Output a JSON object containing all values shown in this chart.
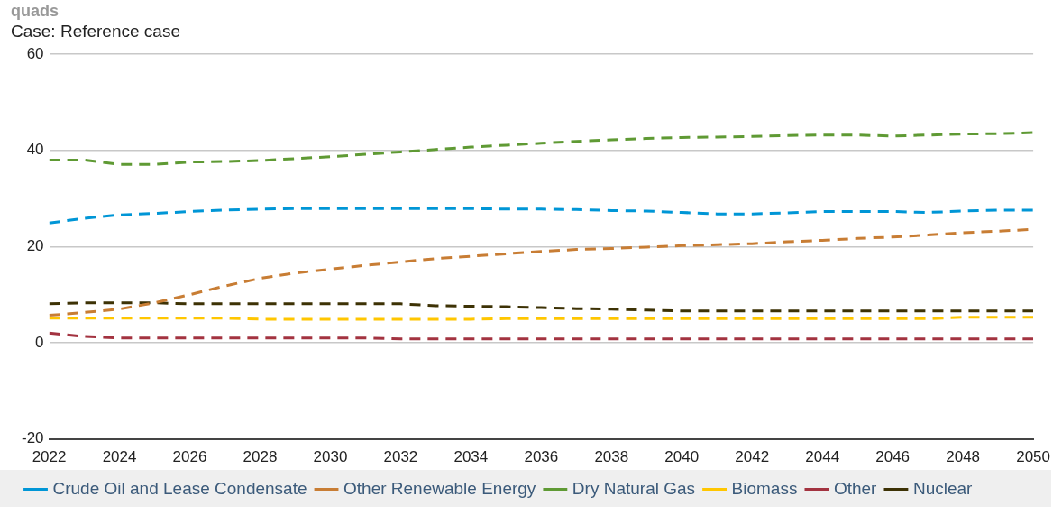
{
  "chart_data": {
    "type": "line",
    "title": "Case: Reference case",
    "ylabel": "quads",
    "x": [
      2022,
      2023,
      2024,
      2025,
      2026,
      2027,
      2028,
      2029,
      2030,
      2031,
      2032,
      2033,
      2034,
      2035,
      2036,
      2037,
      2038,
      2039,
      2040,
      2041,
      2042,
      2043,
      2044,
      2045,
      2046,
      2047,
      2048,
      2049,
      2050
    ],
    "series": [
      {
        "name": "Crude Oil and Lease Condensate",
        "color": "#0096d6",
        "values": [
          24.9,
          25.9,
          26.6,
          26.9,
          27.3,
          27.6,
          27.8,
          27.9,
          27.9,
          27.9,
          27.9,
          27.9,
          27.9,
          27.8,
          27.8,
          27.7,
          27.5,
          27.4,
          27.1,
          26.8,
          26.8,
          27.0,
          27.3,
          27.3,
          27.3,
          27.1,
          27.4,
          27.6,
          27.6
        ]
      },
      {
        "name": "Other Renewable Energy",
        "color": "#c87d34",
        "values": [
          5.7,
          6.3,
          7.0,
          8.3,
          10.0,
          11.8,
          13.4,
          14.5,
          15.3,
          16.1,
          16.8,
          17.5,
          18.0,
          18.5,
          19.0,
          19.4,
          19.6,
          19.9,
          20.2,
          20.4,
          20.6,
          21.0,
          21.3,
          21.7,
          22.0,
          22.4,
          22.9,
          23.2,
          23.6
        ]
      },
      {
        "name": "Dry Natural Gas",
        "color": "#5f9a34",
        "values": [
          38.0,
          38.0,
          37.1,
          37.1,
          37.6,
          37.7,
          37.9,
          38.3,
          38.7,
          39.2,
          39.7,
          40.2,
          40.7,
          41.1,
          41.5,
          41.9,
          42.2,
          42.5,
          42.7,
          42.8,
          42.9,
          43.1,
          43.2,
          43.2,
          43.0,
          43.2,
          43.4,
          43.5,
          43.7
        ]
      },
      {
        "name": "Biomass",
        "color": "#ffc600",
        "values": [
          5.1,
          5.1,
          5.1,
          5.1,
          5.1,
          5.1,
          4.9,
          4.9,
          4.9,
          4.9,
          4.9,
          4.9,
          4.9,
          5.0,
          5.0,
          5.0,
          5.0,
          5.0,
          5.0,
          5.0,
          5.0,
          5.0,
          5.0,
          5.0,
          5.0,
          5.0,
          5.3,
          5.3,
          5.3
        ]
      },
      {
        "name": "Other",
        "color": "#a33340",
        "values": [
          2.0,
          1.3,
          1.0,
          1.0,
          1.0,
          1.0,
          1.0,
          1.0,
          1.0,
          1.0,
          0.8,
          0.8,
          0.8,
          0.8,
          0.8,
          0.8,
          0.8,
          0.8,
          0.8,
          0.8,
          0.8,
          0.8,
          0.8,
          0.8,
          0.8,
          0.8,
          0.8,
          0.8,
          0.8
        ]
      },
      {
        "name": "Nuclear",
        "color": "#3d3205",
        "values": [
          8.1,
          8.3,
          8.3,
          8.3,
          8.1,
          8.1,
          8.1,
          8.1,
          8.1,
          8.1,
          8.1,
          7.7,
          7.6,
          7.5,
          7.3,
          7.1,
          7.0,
          6.8,
          6.6,
          6.6,
          6.6,
          6.6,
          6.6,
          6.6,
          6.6,
          6.6,
          6.6,
          6.6,
          6.6
        ]
      }
    ],
    "xlim": [
      2022,
      2050
    ],
    "xticks": [
      2022,
      2024,
      2026,
      2028,
      2030,
      2032,
      2034,
      2036,
      2038,
      2040,
      2042,
      2044,
      2046,
      2048,
      2050
    ],
    "ylim": [
      -20,
      60
    ],
    "yticks": [
      -20,
      0,
      20,
      40,
      60
    ],
    "grid": "y",
    "legend": "bottom",
    "line_style": "dashed",
    "marker": "none"
  }
}
